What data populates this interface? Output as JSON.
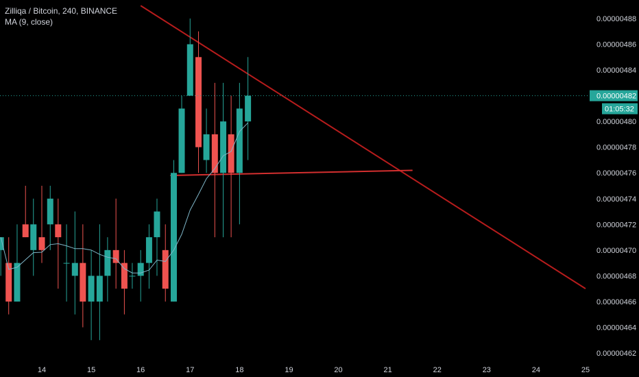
{
  "legend": {
    "symbol_line": "Zilliqa / Bitcoin, 240, BINANCE",
    "indicator_line": "MA (9, close)"
  },
  "colors": {
    "background": "#000000",
    "up": "#26a69a",
    "down": "#ef5350",
    "ma": "#7fb6c8",
    "trendline": "#b71c1c",
    "horizontal_line": "#d32f2f",
    "current_price_tag": "#26a69a",
    "axis_text": "#d1d4dc"
  },
  "price_axis": {
    "ticks": [
      "0.00000488",
      "0.00000486",
      "0.00000484",
      "0.00000482",
      "0.00000480",
      "0.00000478",
      "0.00000476",
      "0.00000474",
      "0.00000472",
      "0.00000470",
      "0.00000468",
      "0.00000466",
      "0.00000464",
      "0.00000462"
    ]
  },
  "current_price": {
    "value": "0.00000482",
    "countdown": "01:05:32"
  },
  "chart_data": {
    "type": "candlestick",
    "x_axis": {
      "type": "date (day of month)",
      "tick_labels": [
        "14",
        "15",
        "16",
        "17",
        "18",
        "19",
        "20",
        "21",
        "22",
        "23",
        "24",
        "25"
      ],
      "range": [
        13.2,
        25.1
      ]
    },
    "y_axis": {
      "range": [
        4.613e-06,
        4.893e-06
      ],
      "position": "right"
    },
    "grid": false,
    "candles": [
      {
        "t": 13.17,
        "o": 4.7e-06,
        "h": 4.71e-06,
        "l": 4.68e-06,
        "c": 4.71e-06
      },
      {
        "t": 13.33,
        "o": 4.69e-06,
        "h": 4.71e-06,
        "l": 4.65e-06,
        "c": 4.66e-06
      },
      {
        "t": 13.5,
        "o": 4.66e-06,
        "h": 4.72e-06,
        "l": 4.66e-06,
        "c": 4.69e-06
      },
      {
        "t": 13.67,
        "o": 4.72e-06,
        "h": 4.75e-06,
        "l": 4.71e-06,
        "c": 4.71e-06
      },
      {
        "t": 13.83,
        "o": 4.7e-06,
        "h": 4.74e-06,
        "l": 4.68e-06,
        "c": 4.72e-06
      },
      {
        "t": 14.0,
        "o": 4.71e-06,
        "h": 4.75e-06,
        "l": 4.69e-06,
        "c": 4.7e-06
      },
      {
        "t": 14.17,
        "o": 4.72e-06,
        "h": 4.75e-06,
        "l": 4.7e-06,
        "c": 4.74e-06
      },
      {
        "t": 14.33,
        "o": 4.72e-06,
        "h": 4.74e-06,
        "l": 4.67e-06,
        "c": 4.71e-06
      },
      {
        "t": 14.5,
        "o": 4.69e-06,
        "h": 4.72e-06,
        "l": 4.66e-06,
        "c": 4.69e-06
      },
      {
        "t": 14.67,
        "o": 4.68e-06,
        "h": 4.73e-06,
        "l": 4.65e-06,
        "c": 4.69e-06
      },
      {
        "t": 14.83,
        "o": 4.69e-06,
        "h": 4.72e-06,
        "l": 4.64e-06,
        "c": 4.66e-06
      },
      {
        "t": 15.0,
        "o": 4.66e-06,
        "h": 4.7e-06,
        "l": 4.63e-06,
        "c": 4.68e-06
      },
      {
        "t": 15.17,
        "o": 4.66e-06,
        "h": 4.72e-06,
        "l": 4.63e-06,
        "c": 4.68e-06
      },
      {
        "t": 15.33,
        "o": 4.68e-06,
        "h": 4.71e-06,
        "l": 4.66e-06,
        "c": 4.7e-06
      },
      {
        "t": 15.5,
        "o": 4.7e-06,
        "h": 4.74e-06,
        "l": 4.67e-06,
        "c": 4.69e-06
      },
      {
        "t": 15.67,
        "o": 4.69e-06,
        "h": 4.7e-06,
        "l": 4.65e-06,
        "c": 4.67e-06
      },
      {
        "t": 15.83,
        "o": 4.68e-06,
        "h": 4.69e-06,
        "l": 4.67e-06,
        "c": 4.68e-06
      },
      {
        "t": 16.0,
        "o": 4.68e-06,
        "h": 4.7e-06,
        "l": 4.66e-06,
        "c": 4.69e-06
      },
      {
        "t": 16.17,
        "o": 4.69e-06,
        "h": 4.72e-06,
        "l": 4.67e-06,
        "c": 4.71e-06
      },
      {
        "t": 16.33,
        "o": 4.71e-06,
        "h": 4.74e-06,
        "l": 4.68e-06,
        "c": 4.73e-06
      },
      {
        "t": 16.5,
        "o": 4.7e-06,
        "h": 4.72e-06,
        "l": 4.66e-06,
        "c": 4.67e-06
      },
      {
        "t": 16.67,
        "o": 4.66e-06,
        "h": 4.77e-06,
        "l": 4.66e-06,
        "c": 4.76e-06
      },
      {
        "t": 16.83,
        "o": 4.76e-06,
        "h": 4.82e-06,
        "l": 4.76e-06,
        "c": 4.81e-06
      },
      {
        "t": 17.0,
        "o": 4.82e-06,
        "h": 4.88e-06,
        "l": 4.82e-06,
        "c": 4.86e-06
      },
      {
        "t": 17.17,
        "o": 4.85e-06,
        "h": 4.87e-06,
        "l": 4.76e-06,
        "c": 4.78e-06
      },
      {
        "t": 17.33,
        "o": 4.77e-06,
        "h": 4.81e-06,
        "l": 4.76e-06,
        "c": 4.79e-06
      },
      {
        "t": 17.5,
        "o": 4.79e-06,
        "h": 4.83e-06,
        "l": 4.71e-06,
        "c": 4.76e-06
      },
      {
        "t": 17.67,
        "o": 4.76e-06,
        "h": 4.83e-06,
        "l": 4.71e-06,
        "c": 4.8e-06
      },
      {
        "t": 17.83,
        "o": 4.79e-06,
        "h": 4.82e-06,
        "l": 4.71e-06,
        "c": 4.76e-06
      },
      {
        "t": 18.0,
        "o": 4.76e-06,
        "h": 4.83e-06,
        "l": 4.72e-06,
        "c": 4.81e-06
      },
      {
        "t": 18.17,
        "o": 4.8e-06,
        "h": 4.85e-06,
        "l": 4.77e-06,
        "c": 4.82e-06
      }
    ],
    "ma_period": 9,
    "drawings": [
      {
        "type": "trendline",
        "from": {
          "t": 16.0,
          "y": 4.89e-06
        },
        "to": {
          "t": 25.0,
          "y": 4.67e-06
        }
      },
      {
        "type": "horizontal_segment",
        "from": {
          "t": 16.6,
          "y": 4.758e-06
        },
        "to": {
          "t": 21.5,
          "y": 4.762e-06
        }
      }
    ],
    "current_price_line": {
      "y": 4.82e-06
    }
  }
}
